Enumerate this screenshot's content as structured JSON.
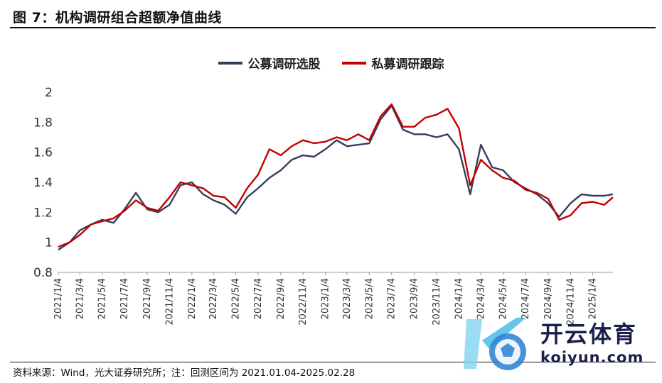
{
  "title": "图 7：机构调研组合超额净值曲线",
  "footnote": "资料来源：Wind，光大证券研究所；注：回测区间为 2021.01.04-2025.02.28",
  "watermark": {
    "brand": "开云体育",
    "url": "koiyun.com"
  },
  "colors": {
    "public": "#34405a",
    "private": "#c40000"
  },
  "chart_data": {
    "type": "line",
    "title": "",
    "xlabel": "",
    "ylabel": "",
    "ylim": [
      0.8,
      2.0
    ],
    "y_ticks": [
      "0.8",
      "1",
      "1.2",
      "1.4",
      "1.6",
      "1.8",
      "2"
    ],
    "x_ticks": [
      "2021/1/4",
      "2021/3/4",
      "2021/5/4",
      "2021/7/4",
      "2021/9/4",
      "2021/11/4",
      "2022/1/4",
      "2022/3/4",
      "2022/5/4",
      "2022/7/4",
      "2022/9/4",
      "2022/11/4",
      "2023/1/4",
      "2023/3/4",
      "2023/5/4",
      "2023/7/4",
      "2023/9/4",
      "2023/11/4",
      "2024/1/4",
      "2024/3/4",
      "2024/5/4",
      "2024/7/4",
      "2024/9/4",
      "2024/11/4",
      "2025/1/4"
    ],
    "grid": false,
    "legend_position": "top-center",
    "x": [
      "2021-01-04",
      "2021-02-04",
      "2021-03-04",
      "2021-04-04",
      "2021-05-04",
      "2021-06-04",
      "2021-07-04",
      "2021-08-04",
      "2021-09-04",
      "2021-10-04",
      "2021-11-04",
      "2021-12-04",
      "2022-01-04",
      "2022-02-04",
      "2022-03-04",
      "2022-04-04",
      "2022-05-04",
      "2022-06-04",
      "2022-07-04",
      "2022-08-04",
      "2022-09-04",
      "2022-10-04",
      "2022-11-04",
      "2022-12-04",
      "2023-01-04",
      "2023-02-04",
      "2023-03-04",
      "2023-04-04",
      "2023-05-04",
      "2023-06-04",
      "2023-07-04",
      "2023-08-04",
      "2023-09-04",
      "2023-10-04",
      "2023-11-04",
      "2023-12-04",
      "2024-01-04",
      "2024-02-04",
      "2024-03-04",
      "2024-04-04",
      "2024-05-04",
      "2024-06-04",
      "2024-07-04",
      "2024-08-04",
      "2024-09-04",
      "2024-10-04",
      "2024-11-04",
      "2024-12-04",
      "2025-01-04",
      "2025-02-04",
      "2025-02-28"
    ],
    "series": [
      {
        "name": "公募调研选股",
        "color": "#34405a",
        "values": [
          0.95,
          1.0,
          1.08,
          1.12,
          1.15,
          1.13,
          1.22,
          1.33,
          1.22,
          1.2,
          1.25,
          1.38,
          1.4,
          1.32,
          1.28,
          1.25,
          1.19,
          1.3,
          1.36,
          1.43,
          1.48,
          1.55,
          1.58,
          1.57,
          1.62,
          1.68,
          1.64,
          1.65,
          1.66,
          1.82,
          1.91,
          1.75,
          1.72,
          1.72,
          1.7,
          1.72,
          1.62,
          1.32,
          1.65,
          1.5,
          1.48,
          1.4,
          1.36,
          1.32,
          1.26,
          1.17,
          1.26,
          1.32,
          1.31,
          1.31,
          1.32
        ]
      },
      {
        "name": "私募调研跟踪",
        "color": "#c40000",
        "values": [
          0.97,
          1.0,
          1.05,
          1.12,
          1.14,
          1.16,
          1.21,
          1.28,
          1.23,
          1.21,
          1.3,
          1.4,
          1.38,
          1.36,
          1.31,
          1.3,
          1.23,
          1.36,
          1.45,
          1.62,
          1.58,
          1.64,
          1.68,
          1.66,
          1.67,
          1.7,
          1.68,
          1.72,
          1.68,
          1.84,
          1.92,
          1.77,
          1.77,
          1.83,
          1.85,
          1.89,
          1.76,
          1.38,
          1.55,
          1.48,
          1.43,
          1.41,
          1.35,
          1.33,
          1.29,
          1.15,
          1.18,
          1.26,
          1.27,
          1.25,
          1.3
        ]
      }
    ]
  }
}
